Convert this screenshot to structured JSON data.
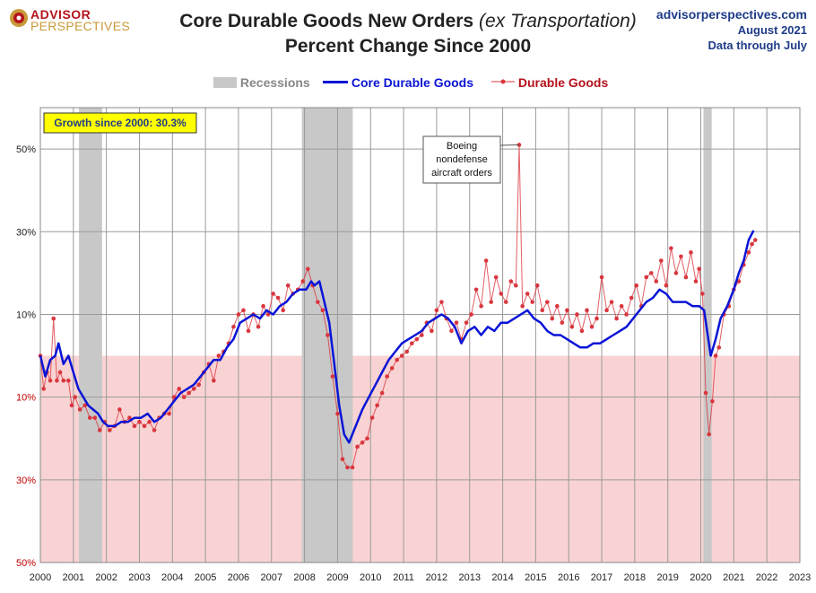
{
  "brand": {
    "line1": "ADVISOR",
    "line2": "PERSPECTIVES"
  },
  "title": {
    "main": "Core Durable Goods New Orders",
    "italic": "(ex Transportation)",
    "line2": "Percent Change Since 2000"
  },
  "source": {
    "site": "advisorperspectives.com",
    "date": "August 2021",
    "note": "Data through July"
  },
  "colors": {
    "core": "#0a14d6",
    "durable": "#d9363e",
    "recession": "#c8c8c8",
    "negative_zone": "#f9d3d3",
    "growth_box": "#ffff00"
  },
  "growth_box": {
    "label": "Growth since 2000:",
    "value": "30.3%"
  },
  "annotation": {
    "lines": [
      "Boeing",
      "nondefense",
      "aircraft orders"
    ]
  },
  "chart_data": {
    "type": "line",
    "x_range": [
      2000,
      2023
    ],
    "ylim": [
      -50,
      60
    ],
    "y_ticks": [
      {
        "value": 50,
        "label": "50%"
      },
      {
        "value": 30,
        "label": "30%"
      },
      {
        "value": 10,
        "label": "10%"
      },
      {
        "value": -10,
        "label": "10%"
      },
      {
        "value": -30,
        "label": "30%"
      },
      {
        "value": -50,
        "label": "50%"
      }
    ],
    "x_ticks": [
      "2000",
      "2001",
      "2002",
      "2003",
      "2004",
      "2005",
      "2006",
      "2007",
      "2008",
      "2009",
      "2010",
      "2011",
      "2012",
      "2013",
      "2014",
      "2015",
      "2016",
      "2017",
      "2018",
      "2019",
      "2020",
      "2021",
      "2022",
      "2023"
    ],
    "legend": [
      "Recessions",
      "Core Durable Goods",
      "Durable Goods"
    ],
    "legend_position": "top-center",
    "grid": true,
    "recessions": [
      [
        2001.17,
        2001.87
      ],
      [
        2007.92,
        2009.46
      ],
      [
        2020.08,
        2020.33
      ]
    ],
    "series": [
      {
        "name": "Core Durable Goods",
        "points": [
          [
            2000,
            0
          ],
          [
            2000.15,
            -5
          ],
          [
            2000.3,
            -1
          ],
          [
            2000.45,
            0
          ],
          [
            2000.55,
            3
          ],
          [
            2000.7,
            -2
          ],
          [
            2000.85,
            0
          ],
          [
            2001,
            -4
          ],
          [
            2001.15,
            -8
          ],
          [
            2001.3,
            -10
          ],
          [
            2001.45,
            -12
          ],
          [
            2001.6,
            -13
          ],
          [
            2001.75,
            -14
          ],
          [
            2001.9,
            -16
          ],
          [
            2002.05,
            -17
          ],
          [
            2002.25,
            -17
          ],
          [
            2002.45,
            -16
          ],
          [
            2002.65,
            -16
          ],
          [
            2002.85,
            -15
          ],
          [
            2003.05,
            -15
          ],
          [
            2003.25,
            -14
          ],
          [
            2003.45,
            -16
          ],
          [
            2003.65,
            -15
          ],
          [
            2003.85,
            -13
          ],
          [
            2004.05,
            -11
          ],
          [
            2004.25,
            -9
          ],
          [
            2004.45,
            -8
          ],
          [
            2004.65,
            -7
          ],
          [
            2004.85,
            -5
          ],
          [
            2005.05,
            -3
          ],
          [
            2005.25,
            -1
          ],
          [
            2005.45,
            -1
          ],
          [
            2005.65,
            2
          ],
          [
            2005.85,
            4
          ],
          [
            2006.05,
            8
          ],
          [
            2006.25,
            9
          ],
          [
            2006.45,
            10
          ],
          [
            2006.65,
            9
          ],
          [
            2006.85,
            11
          ],
          [
            2007.05,
            10
          ],
          [
            2007.25,
            12
          ],
          [
            2007.45,
            13
          ],
          [
            2007.65,
            15
          ],
          [
            2007.85,
            16
          ],
          [
            2008.05,
            16
          ],
          [
            2008.2,
            18
          ],
          [
            2008.3,
            17
          ],
          [
            2008.45,
            18
          ],
          [
            2008.6,
            13
          ],
          [
            2008.75,
            8
          ],
          [
            2008.9,
            -2
          ],
          [
            2009.05,
            -12
          ],
          [
            2009.2,
            -19
          ],
          [
            2009.35,
            -21
          ],
          [
            2009.55,
            -17
          ],
          [
            2009.75,
            -13
          ],
          [
            2009.95,
            -10
          ],
          [
            2010.15,
            -7
          ],
          [
            2010.35,
            -4
          ],
          [
            2010.55,
            -1
          ],
          [
            2010.75,
            1
          ],
          [
            2010.95,
            3
          ],
          [
            2011.15,
            4
          ],
          [
            2011.35,
            5
          ],
          [
            2011.55,
            6
          ],
          [
            2011.75,
            8
          ],
          [
            2011.95,
            9
          ],
          [
            2012.15,
            10
          ],
          [
            2012.35,
            9
          ],
          [
            2012.55,
            7
          ],
          [
            2012.75,
            3
          ],
          [
            2012.95,
            6
          ],
          [
            2013.15,
            7
          ],
          [
            2013.35,
            5
          ],
          [
            2013.55,
            7
          ],
          [
            2013.75,
            6
          ],
          [
            2013.95,
            8
          ],
          [
            2014.15,
            8
          ],
          [
            2014.35,
            9
          ],
          [
            2014.55,
            10
          ],
          [
            2014.75,
            11
          ],
          [
            2014.95,
            9
          ],
          [
            2015.15,
            8
          ],
          [
            2015.35,
            6
          ],
          [
            2015.55,
            5
          ],
          [
            2015.75,
            5
          ],
          [
            2015.95,
            4
          ],
          [
            2016.15,
            3
          ],
          [
            2016.35,
            2
          ],
          [
            2016.55,
            2
          ],
          [
            2016.75,
            3
          ],
          [
            2016.95,
            3
          ],
          [
            2017.15,
            4
          ],
          [
            2017.35,
            5
          ],
          [
            2017.55,
            6
          ],
          [
            2017.75,
            7
          ],
          [
            2017.95,
            9
          ],
          [
            2018.15,
            11
          ],
          [
            2018.35,
            13
          ],
          [
            2018.55,
            14
          ],
          [
            2018.75,
            16
          ],
          [
            2018.95,
            15
          ],
          [
            2019.15,
            13
          ],
          [
            2019.35,
            13
          ],
          [
            2019.55,
            13
          ],
          [
            2019.75,
            12
          ],
          [
            2019.95,
            12
          ],
          [
            2020.1,
            11
          ],
          [
            2020.3,
            0
          ],
          [
            2020.45,
            4
          ],
          [
            2020.6,
            9
          ],
          [
            2020.8,
            12
          ],
          [
            2021,
            16
          ],
          [
            2021.15,
            20
          ],
          [
            2021.3,
            23
          ],
          [
            2021.45,
            28
          ],
          [
            2021.6,
            30.3
          ]
        ]
      },
      {
        "name": "Durable Goods",
        "points": [
          [
            2000,
            0
          ],
          [
            2000.1,
            -8
          ],
          [
            2000.2,
            -4
          ],
          [
            2000.3,
            -6
          ],
          [
            2000.4,
            9
          ],
          [
            2000.5,
            -6
          ],
          [
            2000.6,
            -4
          ],
          [
            2000.7,
            -6
          ],
          [
            2000.85,
            -6
          ],
          [
            2000.95,
            -12
          ],
          [
            2001.05,
            -10
          ],
          [
            2001.2,
            -13
          ],
          [
            2001.35,
            -12
          ],
          [
            2001.5,
            -15
          ],
          [
            2001.65,
            -15
          ],
          [
            2001.8,
            -18
          ],
          [
            2001.95,
            -16
          ],
          [
            2002.1,
            -18
          ],
          [
            2002.25,
            -17
          ],
          [
            2002.4,
            -13
          ],
          [
            2002.55,
            -16
          ],
          [
            2002.7,
            -15
          ],
          [
            2002.85,
            -17
          ],
          [
            2003.0,
            -16
          ],
          [
            2003.15,
            -17
          ],
          [
            2003.3,
            -16
          ],
          [
            2003.45,
            -18
          ],
          [
            2003.6,
            -15
          ],
          [
            2003.75,
            -14
          ],
          [
            2003.9,
            -14
          ],
          [
            2004.05,
            -10
          ],
          [
            2004.2,
            -8
          ],
          [
            2004.35,
            -10
          ],
          [
            2004.5,
            -9
          ],
          [
            2004.65,
            -8
          ],
          [
            2004.8,
            -7
          ],
          [
            2004.95,
            -4
          ],
          [
            2005.1,
            -2
          ],
          [
            2005.25,
            -6
          ],
          [
            2005.4,
            0
          ],
          [
            2005.55,
            1
          ],
          [
            2005.7,
            3
          ],
          [
            2005.85,
            7
          ],
          [
            2006.0,
            10
          ],
          [
            2006.15,
            11
          ],
          [
            2006.3,
            6
          ],
          [
            2006.45,
            10
          ],
          [
            2006.6,
            7
          ],
          [
            2006.75,
            12
          ],
          [
            2006.9,
            10
          ],
          [
            2007.05,
            15
          ],
          [
            2007.2,
            14
          ],
          [
            2007.35,
            11
          ],
          [
            2007.5,
            17
          ],
          [
            2007.65,
            15
          ],
          [
            2007.8,
            16
          ],
          [
            2007.95,
            18
          ],
          [
            2008.1,
            21
          ],
          [
            2008.25,
            17
          ],
          [
            2008.4,
            13
          ],
          [
            2008.55,
            11
          ],
          [
            2008.7,
            5
          ],
          [
            2008.85,
            -5
          ],
          [
            2009.0,
            -14
          ],
          [
            2009.15,
            -25
          ],
          [
            2009.3,
            -27
          ],
          [
            2009.45,
            -27
          ],
          [
            2009.6,
            -22
          ],
          [
            2009.75,
            -21
          ],
          [
            2009.9,
            -20
          ],
          [
            2010.05,
            -15
          ],
          [
            2010.2,
            -12
          ],
          [
            2010.35,
            -9
          ],
          [
            2010.5,
            -5
          ],
          [
            2010.65,
            -3
          ],
          [
            2010.8,
            -1
          ],
          [
            2010.95,
            0
          ],
          [
            2011.1,
            1
          ],
          [
            2011.25,
            3
          ],
          [
            2011.4,
            4
          ],
          [
            2011.55,
            5
          ],
          [
            2011.7,
            8
          ],
          [
            2011.85,
            6
          ],
          [
            2012.0,
            11
          ],
          [
            2012.15,
            13
          ],
          [
            2012.3,
            9
          ],
          [
            2012.45,
            6
          ],
          [
            2012.6,
            8
          ],
          [
            2012.75,
            4
          ],
          [
            2012.9,
            8
          ],
          [
            2013.05,
            10
          ],
          [
            2013.2,
            16
          ],
          [
            2013.35,
            12
          ],
          [
            2013.5,
            23
          ],
          [
            2013.65,
            13
          ],
          [
            2013.8,
            19
          ],
          [
            2013.95,
            15
          ],
          [
            2014.1,
            13
          ],
          [
            2014.25,
            18
          ],
          [
            2014.4,
            17
          ],
          [
            2014.5,
            51
          ],
          [
            2014.6,
            12
          ],
          [
            2014.75,
            15
          ],
          [
            2014.9,
            13
          ],
          [
            2015.05,
            17
          ],
          [
            2015.2,
            11
          ],
          [
            2015.35,
            13
          ],
          [
            2015.5,
            9
          ],
          [
            2015.65,
            12
          ],
          [
            2015.8,
            8
          ],
          [
            2015.95,
            11
          ],
          [
            2016.1,
            7
          ],
          [
            2016.25,
            10
          ],
          [
            2016.4,
            6
          ],
          [
            2016.55,
            11
          ],
          [
            2016.7,
            7
          ],
          [
            2016.85,
            9
          ],
          [
            2017.0,
            19
          ],
          [
            2017.15,
            11
          ],
          [
            2017.3,
            13
          ],
          [
            2017.45,
            9
          ],
          [
            2017.6,
            12
          ],
          [
            2017.75,
            10
          ],
          [
            2017.9,
            14
          ],
          [
            2018.05,
            17
          ],
          [
            2018.2,
            12
          ],
          [
            2018.35,
            19
          ],
          [
            2018.5,
            20
          ],
          [
            2018.65,
            18
          ],
          [
            2018.8,
            23
          ],
          [
            2018.95,
            17
          ],
          [
            2019.1,
            26
          ],
          [
            2019.25,
            20
          ],
          [
            2019.4,
            24
          ],
          [
            2019.55,
            19
          ],
          [
            2019.7,
            25
          ],
          [
            2019.85,
            18
          ],
          [
            2019.95,
            21
          ],
          [
            2020.05,
            15
          ],
          [
            2020.15,
            -9
          ],
          [
            2020.25,
            -19
          ],
          [
            2020.35,
            -11
          ],
          [
            2020.45,
            0
          ],
          [
            2020.55,
            2
          ],
          [
            2020.7,
            10
          ],
          [
            2020.85,
            12
          ],
          [
            2021.0,
            16
          ],
          [
            2021.15,
            18
          ],
          [
            2021.3,
            22
          ],
          [
            2021.45,
            25
          ],
          [
            2021.55,
            27
          ],
          [
            2021.65,
            28
          ]
        ]
      }
    ]
  }
}
